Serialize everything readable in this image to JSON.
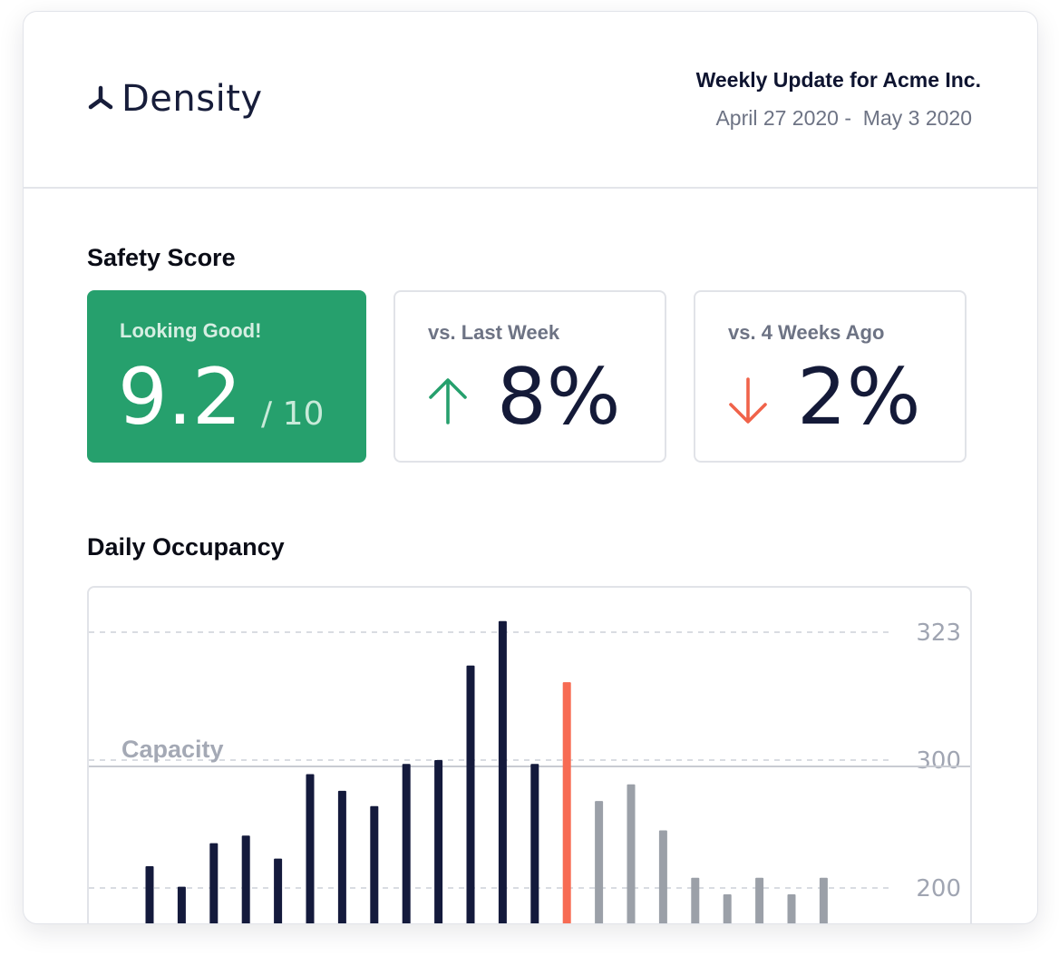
{
  "brand": {
    "name": "Density",
    "logo_icon": "density-logo-icon"
  },
  "report": {
    "title": "Weekly Update for Acme Inc.",
    "date_range": "April 27 2020 -  May 3 2020"
  },
  "safety": {
    "section_title": "Safety Score",
    "score_tile": {
      "label": "Looking Good!",
      "value": "9.2",
      "max": "/ 10",
      "color": "#26a06d"
    },
    "last_week_tile": {
      "label": "vs. Last Week",
      "direction_icon": "arrow-up-icon",
      "value": "8%",
      "color": "#26a06d"
    },
    "four_weeks_tile": {
      "label": "vs. 4 Weeks Ago",
      "direction_icon": "arrow-down-icon",
      "value": "2%",
      "color": "#f0634a"
    }
  },
  "occupancy": {
    "section_title": "Daily Occupancy",
    "capacity_label": "Capacity",
    "colors": {
      "past": "#141a3c",
      "today": "#f76b53",
      "future": "#9ba0a8",
      "capacity_line": "#c8cbd2",
      "gridline": "#d9dce2"
    }
  },
  "chart_data": {
    "type": "bar",
    "y_ticks": [
      323,
      300,
      200
    ],
    "capacity": 295,
    "ylim": [
      170,
      333
    ],
    "values": [
      217,
      201,
      235,
      241,
      223,
      289,
      276,
      264,
      297,
      300,
      317,
      325,
      297,
      314,
      268,
      281,
      245,
      208,
      195,
      208,
      195,
      208,
      170,
      170
    ],
    "status": [
      "past",
      "past",
      "past",
      "past",
      "past",
      "past",
      "past",
      "past",
      "past",
      "past",
      "past",
      "past",
      "past",
      "today",
      "future",
      "future",
      "future",
      "future",
      "future",
      "future",
      "future",
      "future",
      "future",
      "future"
    ]
  }
}
